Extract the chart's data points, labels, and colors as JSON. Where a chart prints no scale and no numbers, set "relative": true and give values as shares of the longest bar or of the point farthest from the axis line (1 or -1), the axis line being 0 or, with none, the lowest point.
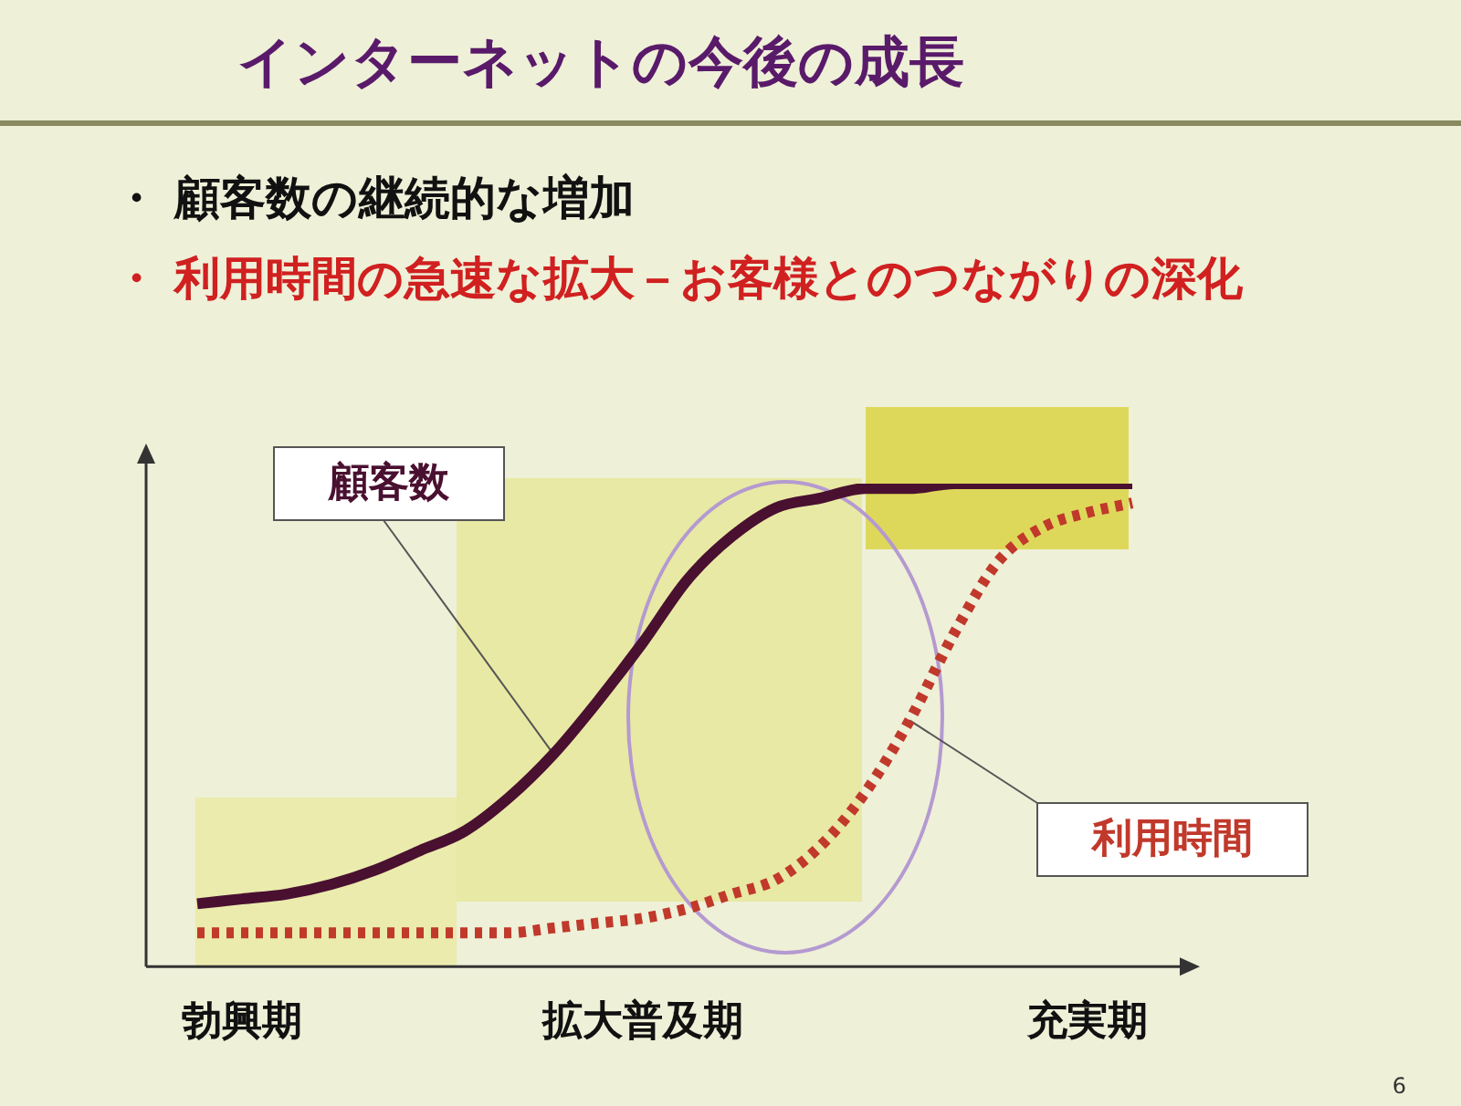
{
  "chart_data": {
    "type": "line",
    "title": "インターネットの今後の成長",
    "annotations": [
      "・ 顧客数の継続的な増加",
      "・ 利用時間の急速な拡大－お客様とのつながりの深化",
      "6"
    ],
    "categories": [
      null,
      "勃興期",
      null,
      null,
      null,
      null,
      null,
      null,
      null,
      null,
      "拡大普及期",
      null,
      null,
      null,
      null,
      null,
      null,
      null,
      null,
      null,
      "充実期",
      null
    ],
    "relative": true,
    "legend": false,
    "grid": false,
    "marker": "none",
    "series": [
      {
        "name": "顧客数",
        "color": "#4a1030",
        "line_style": "solid",
        "values": [
          0.13,
          0.14,
          0.15,
          0.17,
          0.2,
          0.24,
          0.28,
          0.35,
          0.44,
          0.55,
          0.67,
          0.8,
          0.89,
          0.95,
          0.97,
          0.99,
          0.99,
          1,
          1,
          1,
          1,
          1
        ]
      },
      {
        "name": "利用時間",
        "color": "#c0392b",
        "line_style": "dotted",
        "values": [
          0.07,
          0.07,
          0.07,
          0.07,
          0.07,
          0.07,
          0.07,
          0.07,
          0.08,
          0.09,
          0.1,
          0.12,
          0.15,
          0.18,
          0.25,
          0.36,
          0.51,
          0.69,
          0.84,
          0.91,
          0.94,
          0.96
        ]
      }
    ]
  }
}
